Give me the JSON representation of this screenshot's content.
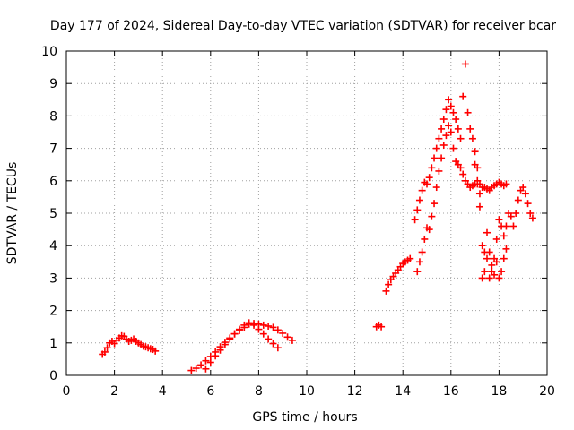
{
  "chart_data": {
    "type": "scatter",
    "title": "Day 177 of 2024, Sidereal Day-to-day VTEC variation (SDTVAR) for receiver bcar",
    "xlabel": "GPS time / hours",
    "ylabel": "SDTVAR / TECUs",
    "xlim": [
      0,
      20
    ],
    "ylim": [
      0,
      10
    ],
    "xticks": [
      0,
      2,
      4,
      6,
      8,
      10,
      12,
      14,
      16,
      18,
      20
    ],
    "yticks": [
      0,
      1,
      2,
      3,
      4,
      5,
      6,
      7,
      8,
      9,
      10
    ],
    "grid": true,
    "marker": "+",
    "color": "#ff0000",
    "series": [
      {
        "name": "SDTVAR",
        "tracks": [
          {
            "x": [
              1.5,
              1.6,
              1.7,
              1.8,
              1.9,
              2.0,
              2.1,
              2.2,
              2.3,
              2.4,
              2.5,
              2.6,
              2.7,
              2.8,
              2.9,
              3.0,
              3.1,
              3.2,
              3.3,
              3.4,
              3.5,
              3.6,
              3.7
            ],
            "y": [
              0.65,
              0.72,
              0.85,
              1.0,
              1.05,
              0.98,
              1.08,
              1.15,
              1.22,
              1.2,
              1.12,
              1.05,
              1.08,
              1.12,
              1.05,
              1.0,
              0.95,
              0.9,
              0.88,
              0.85,
              0.82,
              0.8,
              0.75
            ]
          },
          {
            "x": [
              5.2,
              5.4,
              5.6,
              5.8,
              6.0,
              6.2,
              6.4,
              6.6,
              6.8,
              7.0,
              7.2,
              7.4,
              7.6,
              7.8,
              8.0,
              8.2,
              8.4,
              8.6,
              8.8,
              9.0,
              9.2,
              9.4
            ],
            "y": [
              0.15,
              0.22,
              0.32,
              0.45,
              0.58,
              0.72,
              0.88,
              1.02,
              1.15,
              1.28,
              1.38,
              1.48,
              1.58,
              1.6,
              1.58,
              1.55,
              1.52,
              1.48,
              1.4,
              1.3,
              1.18,
              1.08
            ]
          },
          {
            "x": [
              5.8,
              6.0,
              6.2,
              6.4,
              6.6,
              6.8,
              7.0,
              7.2,
              7.4,
              7.6,
              7.8,
              8.0,
              8.2,
              8.4,
              8.6,
              8.8
            ],
            "y": [
              0.2,
              0.4,
              0.6,
              0.78,
              0.95,
              1.12,
              1.28,
              1.42,
              1.55,
              1.62,
              1.55,
              1.42,
              1.28,
              1.12,
              0.98,
              0.85
            ]
          },
          {
            "x": [
              12.9,
              13.0,
              13.1
            ],
            "y": [
              1.5,
              1.55,
              1.5
            ]
          },
          {
            "x": [
              13.3,
              13.4,
              13.5,
              13.6,
              13.7,
              13.8,
              13.9,
              14.0,
              14.1,
              14.2,
              14.3
            ],
            "y": [
              2.6,
              2.8,
              2.95,
              3.05,
              3.15,
              3.25,
              3.35,
              3.45,
              3.5,
              3.55,
              3.6
            ]
          },
          {
            "x": [
              14.5,
              14.6,
              14.7,
              14.8,
              14.9,
              15.0,
              15.1,
              15.2,
              15.3,
              15.4,
              15.5,
              15.6,
              15.7,
              15.8,
              15.9,
              16.0,
              16.1,
              16.2,
              16.3,
              16.4,
              16.5,
              16.6,
              16.7,
              16.8,
              16.9,
              17.0,
              17.1,
              17.2,
              17.3,
              17.4,
              17.5,
              17.6,
              17.7,
              17.8,
              17.9,
              18.0,
              18.1,
              18.2,
              18.3
            ],
            "y": [
              4.8,
              5.1,
              5.4,
              5.7,
              5.95,
              5.9,
              6.1,
              6.4,
              6.7,
              7.0,
              7.3,
              7.6,
              7.9,
              8.2,
              8.5,
              8.3,
              8.1,
              7.9,
              7.6,
              7.3,
              8.6,
              9.6,
              8.1,
              7.6,
              7.3,
              6.9,
              6.4,
              5.9,
              5.8,
              5.8,
              5.75,
              5.7,
              5.8,
              5.85,
              5.9,
              5.95,
              5.9,
              5.85,
              5.9
            ]
          },
          {
            "x": [
              14.6,
              14.7,
              14.8,
              14.9,
              15.0,
              15.1,
              15.2,
              15.3,
              15.4,
              15.5,
              15.6,
              15.7,
              15.8,
              15.9,
              16.0,
              16.1,
              16.2,
              16.3,
              16.4,
              16.5,
              16.6,
              16.7,
              16.8,
              16.9,
              17.0,
              17.1,
              17.2
            ],
            "y": [
              3.2,
              3.5,
              3.8,
              4.2,
              4.55,
              4.5,
              4.9,
              5.3,
              5.8,
              6.3,
              6.7,
              7.1,
              7.4,
              7.7,
              7.5,
              7.0,
              6.6,
              6.5,
              6.4,
              6.2,
              6.0,
              5.9,
              5.8,
              5.85,
              5.9,
              5.9,
              5.6
            ]
          },
          {
            "x": [
              17.0,
              17.1,
              17.2,
              17.3,
              17.4,
              17.5,
              17.6,
              17.7,
              17.8,
              17.9,
              18.0,
              18.1,
              18.2,
              18.3,
              18.4,
              18.5,
              18.6,
              18.7,
              18.8,
              18.9,
              19.0,
              19.1,
              19.2,
              19.3,
              19.4
            ],
            "y": [
              6.5,
              6.0,
              5.2,
              3.0,
              3.8,
              4.4,
              3.8,
              3.2,
              3.6,
              4.2,
              4.8,
              4.6,
              4.3,
              4.6,
              5.0,
              4.9,
              4.6,
              5.0,
              5.4,
              5.7,
              5.8,
              5.6,
              5.3,
              5.0,
              4.85
            ]
          },
          {
            "x": [
              17.3,
              17.4,
              17.5,
              17.6,
              17.7,
              17.8,
              17.9,
              18.0,
              18.1,
              18.2,
              18.3
            ],
            "y": [
              4.0,
              3.2,
              3.6,
              3.0,
              3.4,
              3.1,
              3.5,
              3.0,
              3.2,
              3.6,
              3.9
            ]
          }
        ]
      }
    ]
  }
}
